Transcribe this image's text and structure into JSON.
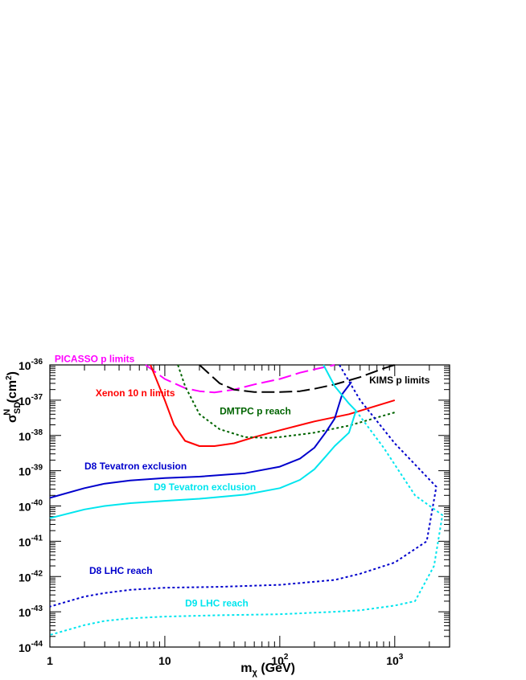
{
  "chart_data": {
    "type": "line",
    "xscale": "log",
    "yscale": "log",
    "xlim": [
      1,
      3000
    ],
    "ylim": [
      1e-44,
      1e-36
    ],
    "grid": false,
    "x_tick_labels": [
      "1",
      "10",
      "10",
      "10"
    ],
    "x_tick_exponents": [
      "",
      "",
      "2",
      "3"
    ],
    "y_tick_labels": [
      "10",
      "10",
      "10",
      "10",
      "10",
      "10",
      "10",
      "10",
      "10"
    ],
    "y_tick_exponents": [
      "-44",
      "-43",
      "-42",
      "-41",
      "-40",
      "-39",
      "-38",
      "-37",
      "-36"
    ],
    "xlabel": {
      "base": "m",
      "sub": "χ",
      "rest": " (GeV)"
    },
    "ylabel": {
      "base": "σ",
      "sub": "SD",
      "sup": "N",
      "rest": " (cm",
      "unit_sup": "2",
      "close": ")"
    },
    "series": [
      {
        "name": "PICASSO p limits",
        "color": "#ff00ff",
        "dash": "long-dash",
        "x": [
          6.8,
          10,
          15,
          20,
          27,
          40,
          60,
          100,
          150,
          200,
          300
        ],
        "y": [
          1e-36,
          4e-37,
          2.2e-37,
          1.8e-37,
          1.65e-37,
          2e-37,
          2.8e-37,
          4e-37,
          6e-37,
          7.5e-37,
          1e-36
        ]
      },
      {
        "name": "Xenon 10 n limits",
        "color": "#ff0000",
        "dash": "solid",
        "x": [
          7.5,
          10,
          12,
          15,
          20,
          27,
          40,
          60,
          100,
          200,
          400,
          1000
        ],
        "y": [
          1e-36,
          1e-37,
          2e-38,
          7e-39,
          5e-39,
          5e-39,
          6e-39,
          9e-39,
          1.4e-38,
          2.5e-38,
          4e-38,
          1e-37
        ]
      },
      {
        "name": "KIMS p limits",
        "color": "#000000",
        "dash": "long-dash",
        "x": [
          20,
          30,
          40,
          60,
          100,
          150,
          200,
          300,
          500,
          800,
          1000
        ],
        "y": [
          1e-36,
          3e-37,
          2e-37,
          1.7e-37,
          1.7e-37,
          1.8e-37,
          2.1e-37,
          2.8e-37,
          4.5e-37,
          8e-37,
          1e-36
        ]
      },
      {
        "name": "DMTPC p reach",
        "color": "#006400",
        "dash": "dot",
        "x": [
          13,
          15,
          20,
          30,
          50,
          80,
          100,
          200,
          400,
          1000
        ],
        "y": [
          1e-36,
          2.5e-37,
          4e-38,
          1.5e-38,
          9e-39,
          8.5e-39,
          9e-39,
          1.2e-38,
          1.9e-38,
          4.5e-38
        ]
      },
      {
        "name": "D8 Tevatron exclusion",
        "color": "#0000cc",
        "dash": "solid",
        "x": [
          1,
          2,
          3,
          5,
          10,
          20,
          50,
          100,
          150,
          200,
          250,
          300,
          350,
          420
        ],
        "y": [
          1.7e-40,
          3.2e-40,
          4.3e-40,
          5.3e-40,
          6.2e-40,
          6.8e-40,
          8.5e-40,
          1.3e-39,
          2.2e-39,
          4.5e-39,
          1.2e-38,
          3e-38,
          1.5e-37,
          3.3e-37
        ]
      },
      {
        "name": "D8 Tevatron exclusion (continued)",
        "color": "#0000cc",
        "dash": "dot",
        "x": [
          330,
          500,
          1000,
          2300,
          1900,
          1000,
          500,
          300,
          100,
          30,
          10,
          5,
          3,
          2,
          1
        ],
        "y": [
          1e-36,
          1e-37,
          6e-39,
          3.5e-40,
          1e-41,
          2.5e-42,
          1.2e-42,
          8e-43,
          5.8e-43,
          5.1e-43,
          4.8e-43,
          4.2e-43,
          3.4e-43,
          2.7e-43,
          1.4e-43
        ]
      },
      {
        "name": "D9 Tevatron exclusion",
        "color": "#00e5ee",
        "dash": "solid",
        "x": [
          1,
          2,
          3,
          5,
          10,
          20,
          50,
          100,
          150,
          200,
          250,
          300,
          400,
          460
        ],
        "y": [
          4.5e-41,
          8e-41,
          1e-40,
          1.2e-40,
          1.4e-40,
          1.6e-40,
          2.1e-40,
          3.2e-40,
          5.5e-40,
          1.1e-39,
          2.5e-39,
          5e-39,
          1.2e-38,
          5e-38
        ]
      },
      {
        "name": "D9 Tevatron exclusion (continued)",
        "color": "#00e5ee",
        "dash": "solid",
        "x": [
          240,
          300,
          400,
          460
        ],
        "y": [
          1e-36,
          2.5e-37,
          8e-38,
          5e-38
        ]
      },
      {
        "name": "D9 LHC reach",
        "color": "#00e5ee",
        "dash": "dot",
        "x": [
          460,
          800,
          1500,
          2600,
          2200,
          1500,
          1000,
          500,
          300,
          100,
          30,
          10,
          5,
          3,
          2,
          1
        ],
        "y": [
          5e-38,
          4.5e-39,
          2e-40,
          5.5e-41,
          2e-42,
          2e-43,
          1.5e-43,
          1.1e-43,
          1e-43,
          8.5e-44,
          8e-44,
          7.3e-44,
          6.5e-44,
          5.5e-44,
          4.2e-44,
          2.2e-44
        ]
      }
    ],
    "annotations": [
      {
        "text": "PICASSO p limits",
        "color": "#ff00ff",
        "x": 1.1,
        "y": 1.2e-36
      },
      {
        "text": "Xenon 10 n limits",
        "color": "#ff0000",
        "x": 2.5,
        "y": 1.3e-37
      },
      {
        "text": "KIMS p limits",
        "color": "#000000",
        "x": 600,
        "y": 3e-37
      },
      {
        "text": "DMTPC p reach",
        "color": "#006400",
        "x": 30,
        "y": 4e-38
      },
      {
        "text": "D8 Tevatron exclusion",
        "color": "#0000cc",
        "x": 2.0,
        "y": 1.1e-39
      },
      {
        "text": "D9 Tevatron exclusion",
        "color": "#00e5ee",
        "x": 8.0,
        "y": 2.8e-40
      },
      {
        "text": "D8 LHC reach",
        "color": "#0000cc",
        "x": 2.2,
        "y": 1.2e-42
      },
      {
        "text": "D9 LHC reach",
        "color": "#00e5ee",
        "x": 15,
        "y": 1.4e-43
      }
    ]
  }
}
